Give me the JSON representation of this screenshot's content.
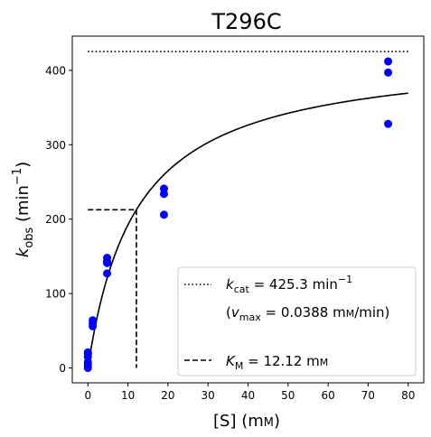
{
  "chart_data": {
    "type": "scatter",
    "title": "T296C",
    "xlabel": {
      "main": "[S] (m",
      "unit_sc": "m",
      "close": ")"
    },
    "ylabel": {
      "k": "k",
      "sub": "obs",
      "rest": " (min",
      "sup": "−1",
      "close": ")"
    },
    "xlim": [
      -3.9,
      83.9
    ],
    "ylim": [
      -20,
      446
    ],
    "xticks": [
      0,
      10,
      20,
      30,
      40,
      50,
      60,
      70,
      80
    ],
    "yticks": [
      0,
      100,
      200,
      300,
      400
    ],
    "x_tick_labels": [
      "0",
      "10",
      "20",
      "30",
      "40",
      "50",
      "60",
      "70",
      "80"
    ],
    "y_tick_labels": [
      "0",
      "100",
      "200",
      "300",
      "400"
    ],
    "points": {
      "color": "#0000ff",
      "x": [
        0,
        0,
        0,
        0,
        0,
        0,
        0,
        1.2,
        1.2,
        1.2,
        4.8,
        4.8,
        4.8,
        4.8,
        19,
        19,
        19,
        75,
        75,
        75
      ],
      "y": [
        0,
        2,
        5,
        8,
        15,
        19,
        21,
        56,
        60,
        64,
        127,
        141,
        143,
        148,
        206,
        234,
        241,
        328,
        397,
        412
      ]
    },
    "fit": {
      "vmax": 425.3,
      "km": 12.12,
      "x_start": 0,
      "x_end": 80,
      "color": "#000000"
    },
    "kcat_line": {
      "y": 425.3,
      "x_start": 0,
      "x_end": 80,
      "style": "dotted"
    },
    "km_lines": {
      "x": 12.12,
      "y": 212.65,
      "x_from": 0,
      "y_from": 0,
      "style": "dashed"
    },
    "legend": {
      "placement": "lower right",
      "kcat": {
        "k": "k",
        "sub": "cat",
        "value": " = 425.3 min",
        "sup": "−1"
      },
      "vmax": {
        "open": "(",
        "v": "v",
        "sub": "max",
        "value": " = 0.0388 m",
        "unit_sc": "m",
        "tail": "/min)"
      },
      "km": {
        "k": "K",
        "sub": "M",
        "value": " = 12.12 m",
        "unit_sc": "m"
      }
    }
  }
}
